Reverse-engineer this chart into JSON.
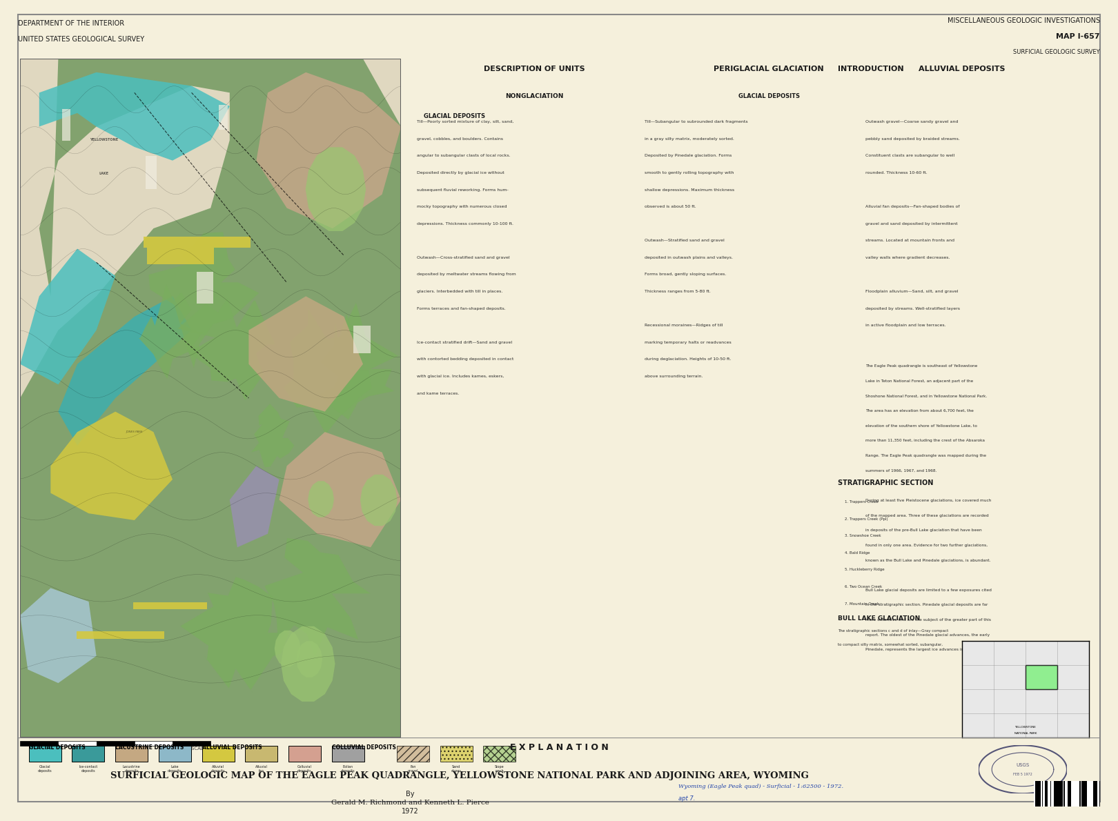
{
  "background_color": "#f5f0dc",
  "map_bg": "#e8e0c8",
  "title_main": "SURFICIAL GEOLOGIC MAP OF THE EAGLE PEAK QUADRANGLE, YELLOWSTONE NATIONAL PARK AND ADJOINING AREA, WYOMING",
  "title_by": "By",
  "title_authors": "Gerald M. Richmond and Kenneth L. Pierce",
  "title_year": "1972",
  "header_left_line1": "DEPARTMENT OF THE INTERIOR",
  "header_left_line2": "UNITED STATES GEOLOGICAL SURVEY",
  "header_right_line1": "MISCELLANEOUS GEOLOGIC INVESTIGATIONS",
  "header_right_line2": "MAP I-657",
  "header_right_line3": "SURFICIAL GEOLOGIC SURVEY",
  "map_colors": {
    "teal_glacial": "#4BBFBE",
    "dark_green_forest": "#5A8B4C",
    "medium_green": "#7AAD5E",
    "light_green": "#9AC472",
    "yellow_bright": "#E8D43A",
    "pink_lacustrine": "#C9A68A",
    "tan_lacustrine": "#C4A882",
    "purple_lake": "#9B8DB8",
    "lavender": "#B8A8CC",
    "light_blue_lake": "#A8C8D8",
    "orange_volcanic": "#D4724A",
    "brown_moraine": "#8B6654",
    "white_areas": "#F0EDE0",
    "gray_text": "#404040"
  },
  "explanation_colors": {
    "glacial_teal": "#4BBFBE",
    "glacial_blue": "#5BA8C8",
    "lacustrine_tan": "#C4A882",
    "lacustrine_blue": "#8DB8C8",
    "alluvial_yellow": "#D4C840",
    "alluvial_tan": "#C8B870",
    "colluvial_pink": "#D4A090",
    "eolian_gray": "#A0A0A0"
  },
  "scale_bar_color": "#404040",
  "border_color": "#808080",
  "text_color": "#1a1a1a",
  "stamp_color": "#4a4a6a",
  "watermark_color": "#d0c8b0"
}
